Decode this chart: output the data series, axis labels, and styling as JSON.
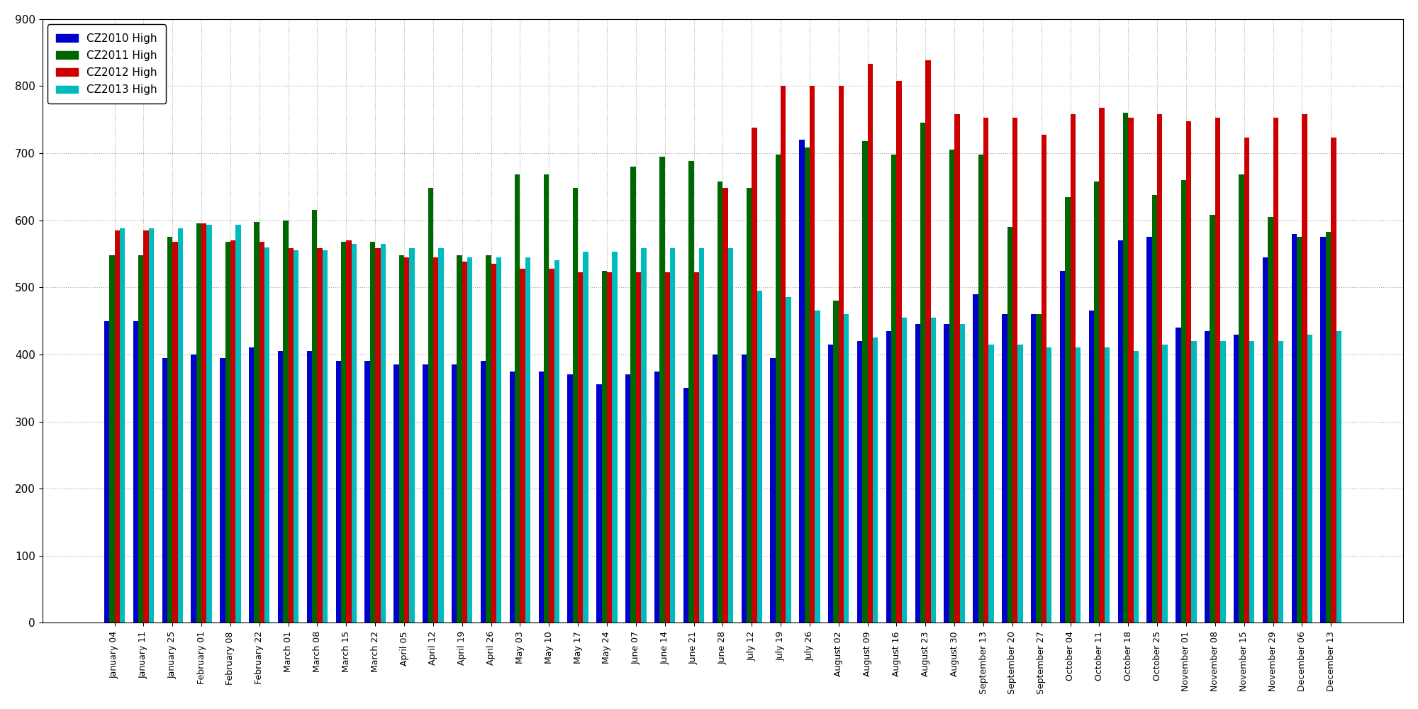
{
  "x_labels": [
    "January 04",
    "January 11",
    "January 25",
    "February 01",
    "February 08",
    "February 22",
    "March 01",
    "March 08",
    "March 15",
    "March 22",
    "April 05",
    "April 12",
    "April 19",
    "April 26",
    "May 03",
    "May 10",
    "May 17",
    "May 24",
    "June 07",
    "June 14",
    "June 21",
    "June 28",
    "July 12",
    "July 19",
    "July 26",
    "August 02",
    "August 09",
    "August 16",
    "August 23",
    "August 30",
    "September 13",
    "September 20",
    "September 27",
    "October 04",
    "October 11",
    "October 18",
    "October 25",
    "November 01",
    "November 08",
    "November 15",
    "November 29",
    "December 06",
    "December 13"
  ],
  "cz2010": [
    450,
    450,
    395,
    400,
    395,
    410,
    405,
    405,
    390,
    390,
    385,
    385,
    385,
    390,
    375,
    375,
    370,
    355,
    370,
    375,
    350,
    400,
    400,
    395,
    720,
    415,
    420,
    435,
    445,
    445,
    490,
    460,
    460,
    525,
    465,
    570,
    575,
    440,
    435,
    430,
    545,
    580,
    575
  ],
  "cz2011": [
    548,
    548,
    575,
    595,
    568,
    598,
    600,
    615,
    568,
    568,
    548,
    648,
    548,
    548,
    668,
    668,
    648,
    525,
    680,
    695,
    688,
    658,
    648,
    698,
    708,
    480,
    718,
    698,
    745,
    705,
    698,
    590,
    460,
    635,
    658,
    760,
    638,
    660,
    608,
    668,
    605,
    575,
    583
  ],
  "cz2012": [
    585,
    585,
    568,
    595,
    570,
    568,
    558,
    558,
    570,
    558,
    545,
    545,
    538,
    535,
    528,
    528,
    523,
    523,
    523,
    523,
    523,
    648,
    738,
    800,
    800,
    800,
    833,
    808,
    838,
    758,
    753,
    753,
    728,
    758,
    768,
    753,
    758,
    748,
    753,
    723,
    753,
    758,
    723
  ],
  "cz2013": [
    588,
    588,
    588,
    593,
    593,
    560,
    555,
    555,
    565,
    565,
    558,
    558,
    545,
    545,
    545,
    540,
    553,
    553,
    558,
    558,
    558,
    558,
    495,
    485,
    465,
    460,
    425,
    455,
    455,
    445,
    415,
    415,
    410,
    410,
    410,
    405,
    415,
    420,
    420,
    420,
    420,
    430,
    435
  ],
  "colors": {
    "cz2010": "#0000cc",
    "cz2011": "#006600",
    "cz2012": "#cc0000",
    "cz2013": "#00bbbb"
  },
  "ylim": [
    0,
    900
  ],
  "yticks": [
    0,
    100,
    200,
    300,
    400,
    500,
    600,
    700,
    800,
    900
  ],
  "background_color": "#ffffff",
  "grid_color": "#aaaaaa",
  "legend_labels": [
    "CZ2010 High",
    "CZ2011 High",
    "CZ2012 High",
    "CZ2013 High"
  ]
}
